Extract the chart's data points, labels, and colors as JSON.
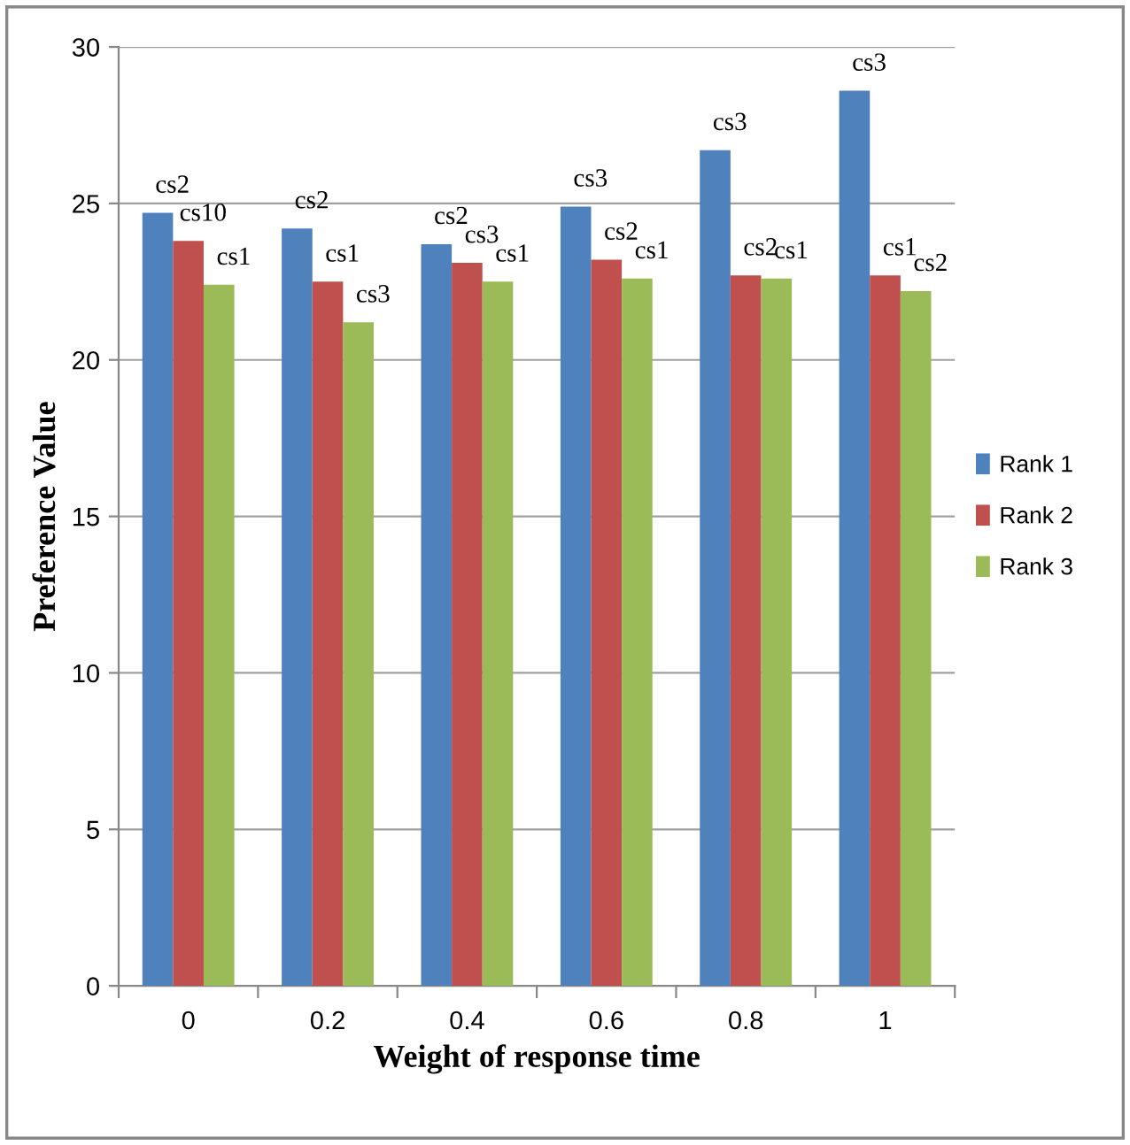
{
  "chart_data": {
    "type": "bar",
    "xlabel": "Weight of response time",
    "ylabel": "Preference Value",
    "categories": [
      "0",
      "0.2",
      "0.4",
      "0.6",
      "0.8",
      "1"
    ],
    "series": [
      {
        "name": "Rank 1",
        "color": "#4f81bd",
        "values": [
          24.7,
          24.2,
          23.7,
          24.9,
          26.7,
          28.6
        ],
        "value_labels": [
          "cs2",
          "cs2",
          "cs2",
          "cs3",
          "cs3",
          "cs3"
        ]
      },
      {
        "name": "Rank 2",
        "color": "#c0504d",
        "values": [
          23.8,
          22.5,
          23.1,
          23.2,
          22.7,
          22.7
        ],
        "value_labels": [
          "cs10",
          "cs1",
          "cs3",
          "cs2",
          "cs2",
          "cs1"
        ]
      },
      {
        "name": "Rank 3",
        "color": "#9bbb59",
        "values": [
          22.4,
          21.2,
          22.5,
          22.6,
          22.6,
          22.2
        ],
        "value_labels": [
          "cs1",
          "cs3",
          "cs1",
          "cs1",
          "cs1",
          "cs2"
        ]
      }
    ],
    "ylim": [
      0,
      30
    ],
    "yticks": [
      0,
      5,
      10,
      15,
      20,
      25,
      30
    ],
    "grid": "y",
    "legend": "right"
  }
}
